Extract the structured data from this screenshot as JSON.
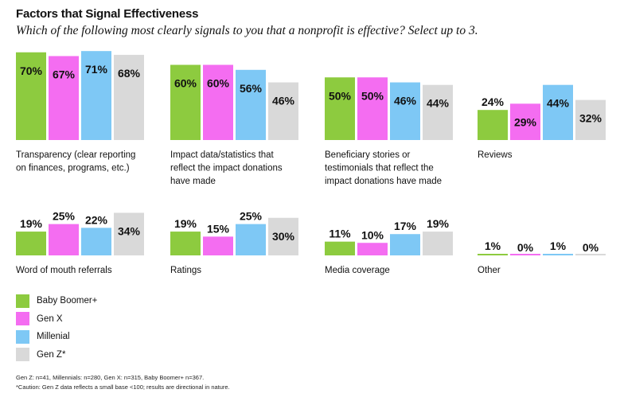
{
  "header": {
    "title": "Factors that Signal Effectiveness",
    "subtitle": "Which of the following most clearly signals to you that a nonprofit is effective? Select up to 3."
  },
  "legend": [
    {
      "label": "Baby Boomer+",
      "color": "#8dcb3f"
    },
    {
      "label": "Gen X",
      "color": "#f46df1"
    },
    {
      "label": "Millenial",
      "color": "#7ec8f5"
    },
    {
      "label": "Gen Z*",
      "color": "#d9d9d9"
    }
  ],
  "footnotes": {
    "base": "Gen Z: n=41, Millennials: n=280, Gen X: n=315, Baby Boomer+ n=367.",
    "caution": "*Caution: Gen Z data reflects a small base <100; results are directional in nature."
  },
  "chart_data": {
    "type": "bar",
    "value_suffix": "%",
    "ylim": [
      0,
      100
    ],
    "series": [
      "Baby Boomer+",
      "Gen X",
      "Millenial",
      "Gen Z*"
    ],
    "colors": [
      "#8dcb3f",
      "#f46df1",
      "#7ec8f5",
      "#d9d9d9"
    ],
    "categories": [
      {
        "label": "Transparency (clear reporting on finances, programs, etc.)",
        "values": [
          70,
          67,
          71,
          68
        ]
      },
      {
        "label": "Impact data/statistics that reflect the impact donations have made",
        "values": [
          60,
          60,
          56,
          46
        ]
      },
      {
        "label": "Beneficiary stories or testimonials that reflect the impact donations have made",
        "values": [
          50,
          50,
          46,
          44
        ]
      },
      {
        "label": "Reviews",
        "values": [
          24,
          29,
          44,
          32
        ]
      },
      {
        "label": "Word of mouth referrals",
        "values": [
          19,
          25,
          22,
          34
        ]
      },
      {
        "label": "Ratings",
        "values": [
          19,
          15,
          25,
          30
        ]
      },
      {
        "label": "Media coverage",
        "values": [
          11,
          10,
          17,
          19
        ]
      },
      {
        "label": "Other",
        "values": [
          1,
          0,
          1,
          0
        ]
      }
    ]
  }
}
